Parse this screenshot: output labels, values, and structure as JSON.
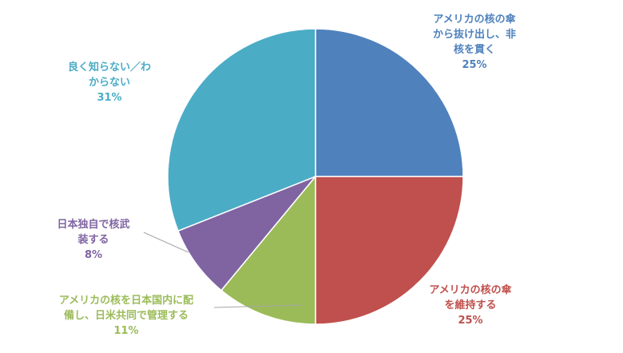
{
  "chart_data": {
    "type": "pie",
    "start_angle_deg": 0,
    "direction": "clockwise",
    "slices": [
      {
        "label_lines": [
          "アメリカの核の傘",
          "から抜け出し、非",
          "核を貫く"
        ],
        "value": 25,
        "pct_label": "25%",
        "color": "#4F81BD"
      },
      {
        "label_lines": [
          "アメリカの核の傘",
          "を維持する"
        ],
        "value": 25,
        "pct_label": "25%",
        "color": "#C0504D"
      },
      {
        "label_lines": [
          "アメリカの核を日本国内に配",
          "備し、日米共同で管理する"
        ],
        "value": 11,
        "pct_label": "11%",
        "color": "#9BBB59"
      },
      {
        "label_lines": [
          "日本独自で核武",
          "装する"
        ],
        "value": 8,
        "pct_label": "8%",
        "color": "#8064A2"
      },
      {
        "label_lines": [
          "良く知らない／わ",
          "からない"
        ],
        "value": 31,
        "pct_label": "31%",
        "color": "#4BACC6"
      }
    ]
  }
}
